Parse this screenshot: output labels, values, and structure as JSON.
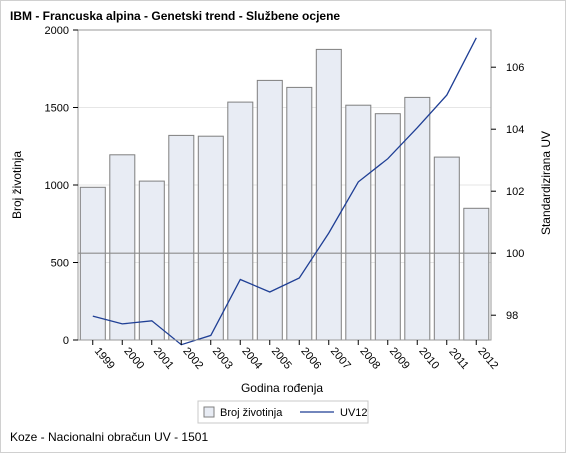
{
  "chart_data": {
    "type": "bar",
    "title": "IBM - Francuska alpina - Genetski trend - Službene ocjene",
    "footnote": "Koze - Nacionalni obračun UV - 1501",
    "xlabel": "Godina rođenja",
    "ylabel": "Broj životinja",
    "y2label": "Standardizirana UV",
    "categories": [
      "1999",
      "2000",
      "2001",
      "2002",
      "2003",
      "2004",
      "2005",
      "2006",
      "2007",
      "2008",
      "2009",
      "2010",
      "2011",
      "2012"
    ],
    "ylim": [
      0,
      2000
    ],
    "y2lim": [
      97.2,
      107.2
    ],
    "yticks": [
      0,
      500,
      1000,
      1500,
      2000
    ],
    "y2ticks": [
      98,
      100,
      102,
      104,
      106
    ],
    "reference_line_y2": 100,
    "grid": true,
    "legend_position": "bottom",
    "series": [
      {
        "name": "Broj životinja",
        "kind": "bar",
        "color": "#e8ecf4",
        "edge_color": "#7f7f7f",
        "values": [
          985,
          1195,
          1025,
          1320,
          1315,
          1535,
          1675,
          1630,
          1875,
          1515,
          1460,
          1565,
          1180,
          850
        ]
      },
      {
        "name": "UV12",
        "kind": "line",
        "axis": "right",
        "color": "#1f3f95",
        "values": [
          97.97,
          97.72,
          97.82,
          97.05,
          97.35,
          99.15,
          98.75,
          99.2,
          100.65,
          102.3,
          103.05,
          104.05,
          105.1,
          106.95
        ]
      }
    ]
  }
}
